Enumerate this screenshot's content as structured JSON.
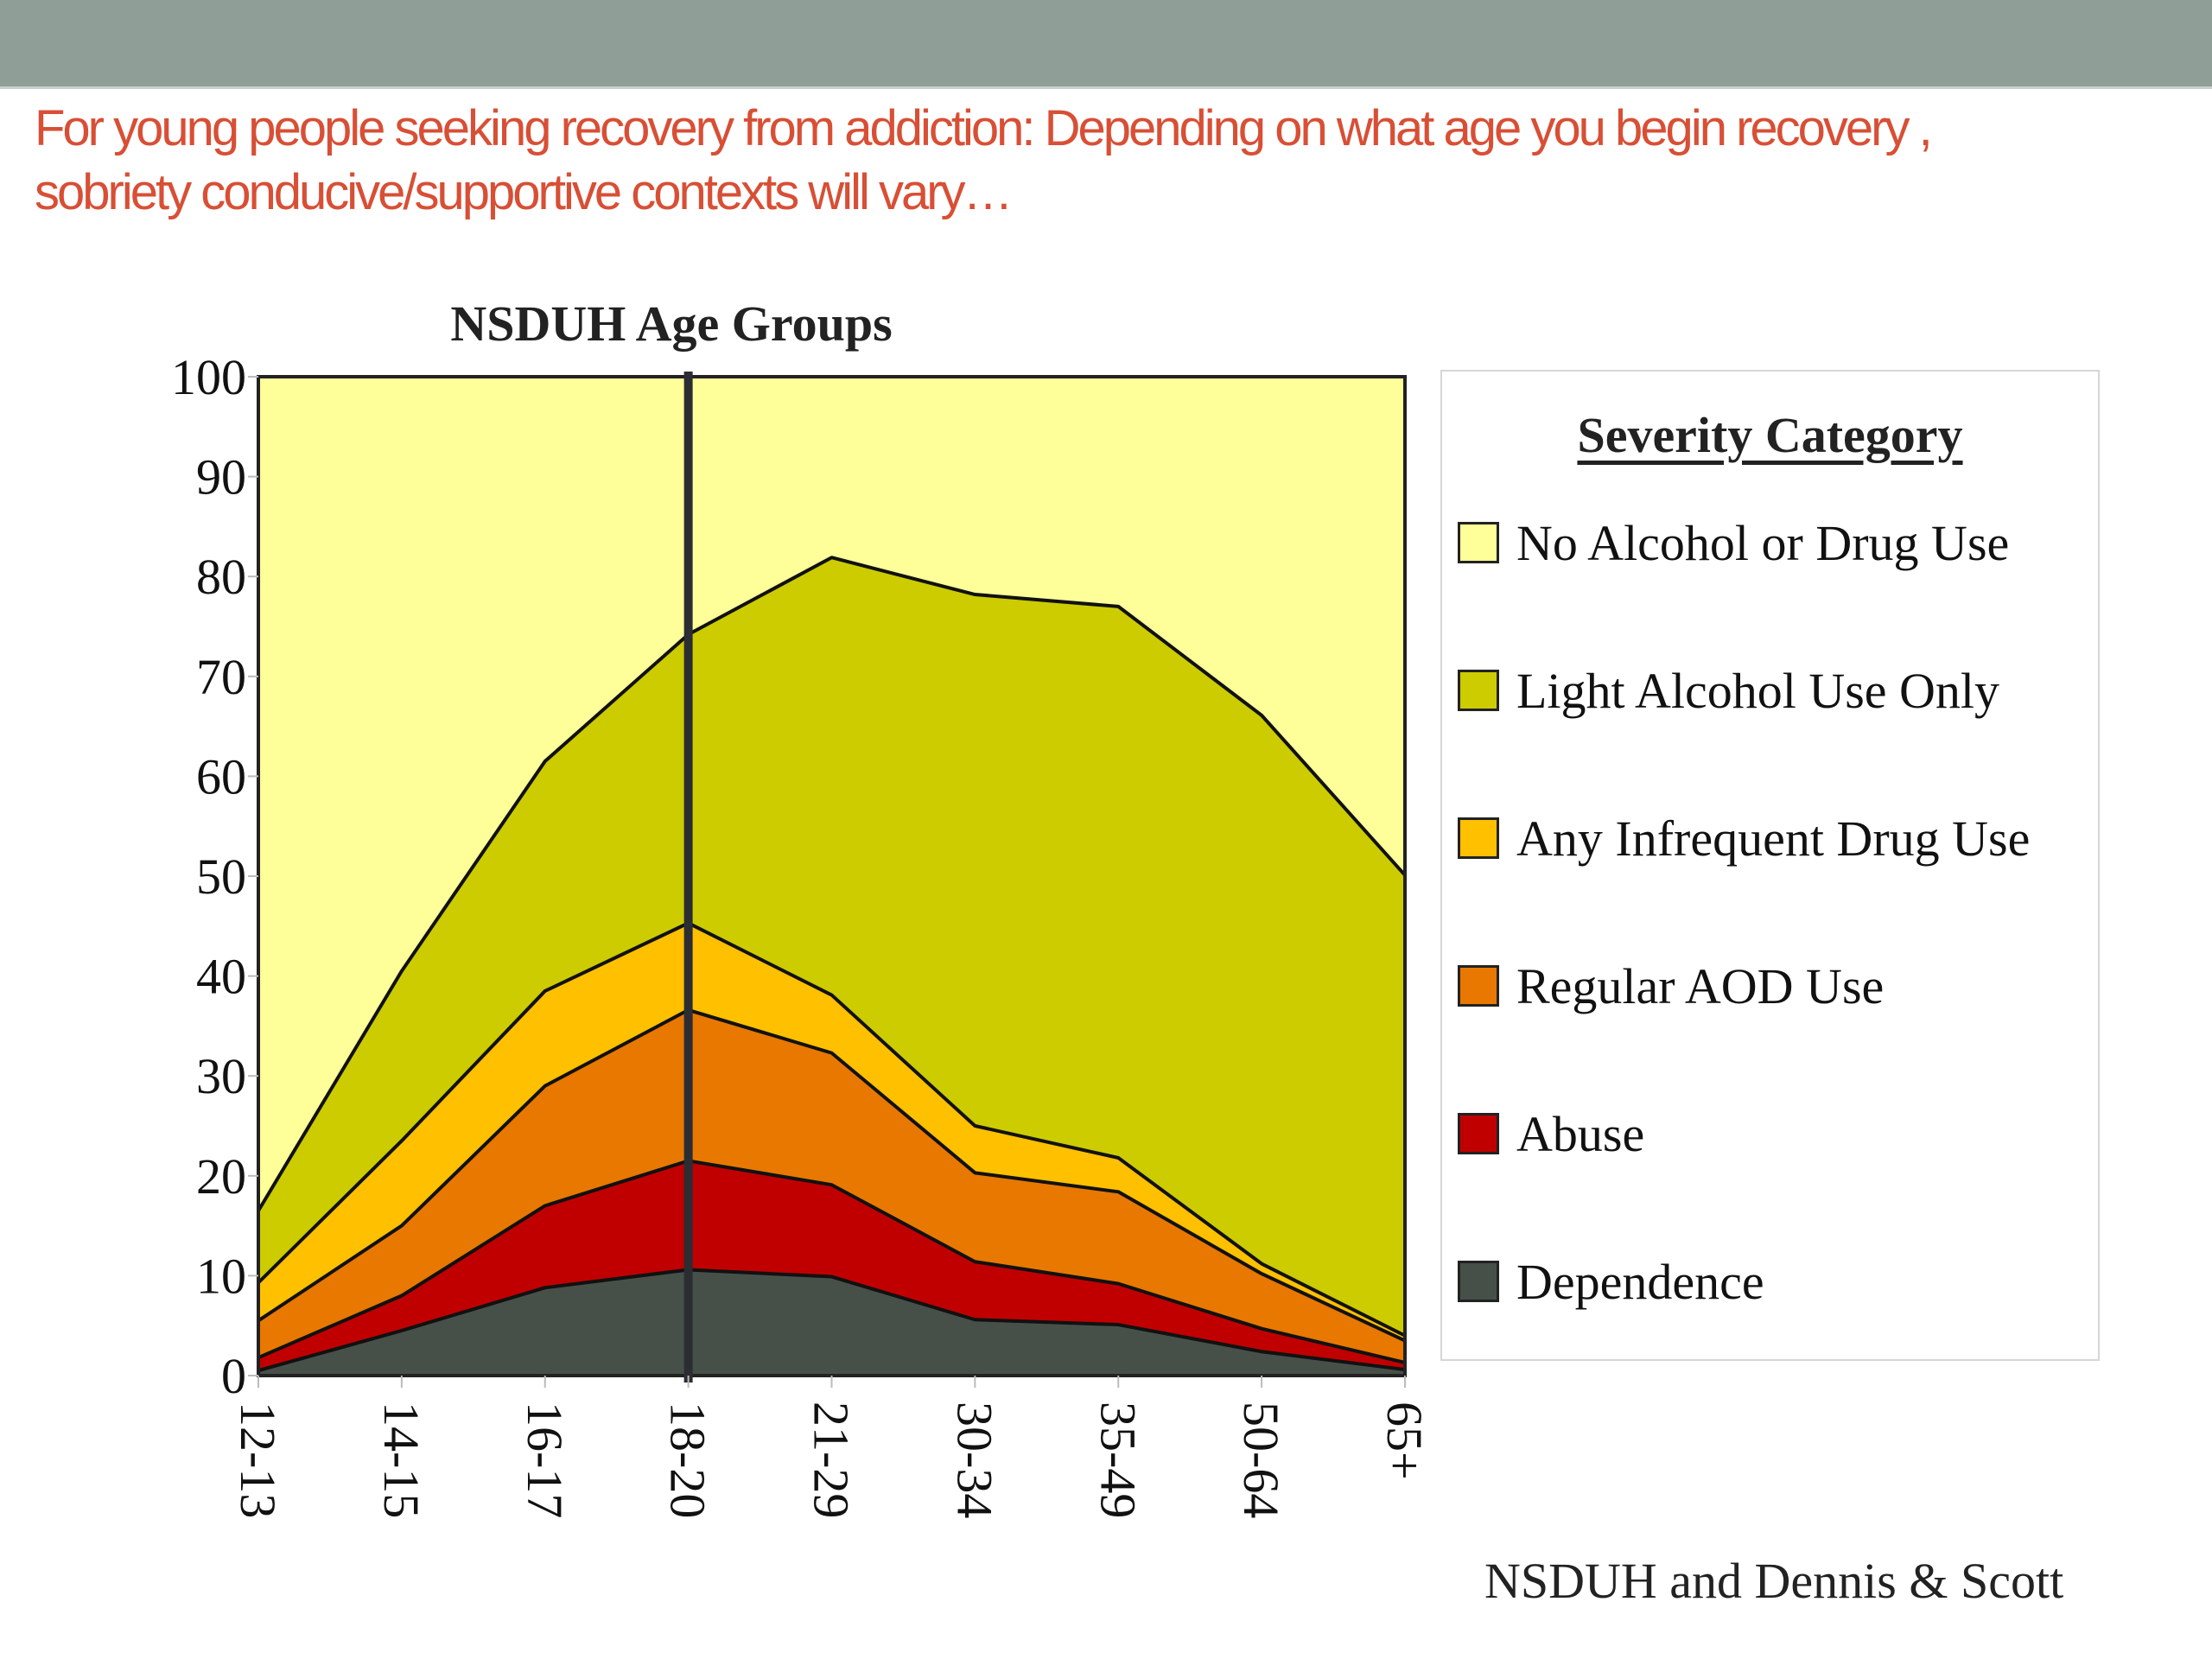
{
  "slide": {
    "title_lines": [
      "For young people seeking recovery from addiction: Depending on what age you begin recovery ,",
      "sobriety conducive/supportive contexts will vary…"
    ],
    "source": "NSDUH and Dennis & Scott"
  },
  "colors": {
    "header_bar": "#8f9e96",
    "title_text": "#d84f35"
  },
  "chart_data": {
    "type": "area",
    "stacked": true,
    "title": "NSDUH Age Groups",
    "xlabel": "",
    "ylabel": "",
    "categories": [
      "12-13",
      "14-15",
      "16-17",
      "18-20",
      "21-29",
      "30-34",
      "35-49",
      "50-64",
      "65+"
    ],
    "ylim": [
      0,
      100
    ],
    "yticks": [
      0,
      10,
      20,
      30,
      40,
      50,
      60,
      70,
      80,
      90,
      100
    ],
    "grid": false,
    "vertical_marker": {
      "category": "18-20",
      "color": "#2b2d33"
    },
    "legend": {
      "title": "Severity Category",
      "placement": "right"
    },
    "series": [
      {
        "name": "Dependence",
        "color": "#465049",
        "values": [
          0.5,
          4.5,
          8.8,
          10.6,
          9.9,
          5.6,
          5.1,
          2.4,
          0.6
        ]
      },
      {
        "name": "Abuse",
        "color": "#c00000",
        "values": [
          1.3,
          3.5,
          8.2,
          10.9,
          9.2,
          5.8,
          4.1,
          2.3,
          0.7
        ]
      },
      {
        "name": "Regular AOD Use",
        "color": "#e87800",
        "values": [
          3.7,
          7.0,
          12.0,
          15.1,
          13.2,
          8.9,
          9.2,
          5.5,
          2.2
        ]
      },
      {
        "name": "Any Infrequent Drug Use",
        "color": "#ffc000",
        "values": [
          3.8,
          8.5,
          9.5,
          8.7,
          5.8,
          4.7,
          3.4,
          1.0,
          0.5
        ]
      },
      {
        "name": "Light Alcohol Use Only",
        "color": "#cccc00",
        "values": [
          7.2,
          17.0,
          23.0,
          28.9,
          43.8,
          53.2,
          55.2,
          54.9,
          46.1
        ]
      },
      {
        "name": "No Alcohol or Drug Use",
        "color": "#ffff99",
        "values": [
          83.5,
          59.5,
          38.5,
          25.8,
          18.1,
          21.8,
          23.0,
          33.9,
          49.9
        ]
      }
    ],
    "legend_order": [
      "No Alcohol or Drug Use",
      "Light Alcohol Use Only",
      "Any Infrequent Drug Use",
      "Regular AOD Use",
      "Abuse",
      "Dependence"
    ]
  }
}
